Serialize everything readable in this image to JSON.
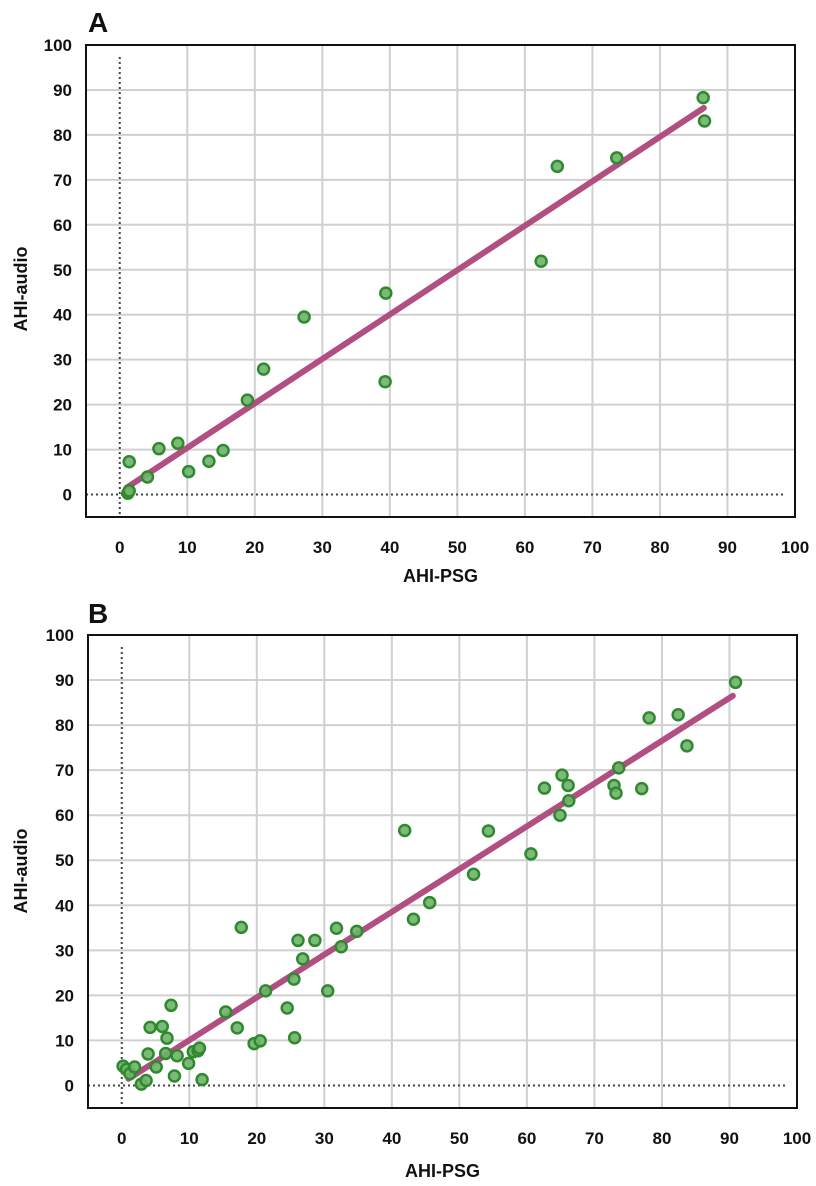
{
  "colors": {
    "point_fill": "#6fb36c",
    "point_stroke": "#2f8a2f",
    "fit_line": "#b24f82"
  },
  "chart_data": [
    {
      "panel": "A",
      "type": "scatter",
      "xlabel": "AHI-PSG",
      "ylabel": "AHI-audio",
      "xlim": [
        -5,
        100
      ],
      "ylim": [
        -5,
        100
      ],
      "xticks": [
        0,
        10,
        20,
        30,
        40,
        50,
        60,
        70,
        80,
        90,
        100
      ],
      "yticks": [
        0,
        10,
        20,
        30,
        40,
        50,
        60,
        70,
        80,
        90,
        100
      ],
      "grid": true,
      "points": [
        {
          "x": 1.2,
          "y": 0.3
        },
        {
          "x": 1.4,
          "y": 0.8
        },
        {
          "x": 1.4,
          "y": 7.3
        },
        {
          "x": 4.1,
          "y": 3.9
        },
        {
          "x": 5.8,
          "y": 10.2
        },
        {
          "x": 8.6,
          "y": 11.4
        },
        {
          "x": 10.2,
          "y": 5.1
        },
        {
          "x": 13.2,
          "y": 7.4
        },
        {
          "x": 15.3,
          "y": 9.8
        },
        {
          "x": 18.9,
          "y": 21.0
        },
        {
          "x": 21.3,
          "y": 27.9
        },
        {
          "x": 27.3,
          "y": 39.5
        },
        {
          "x": 39.3,
          "y": 25.1
        },
        {
          "x": 39.4,
          "y": 44.8
        },
        {
          "x": 62.4,
          "y": 51.9
        },
        {
          "x": 64.8,
          "y": 73.0
        },
        {
          "x": 73.6,
          "y": 74.9
        },
        {
          "x": 86.4,
          "y": 88.3
        },
        {
          "x": 86.6,
          "y": 83.1
        }
      ],
      "fit_line": {
        "x": [
          1,
          86.5
        ],
        "y": [
          1.5,
          86
        ]
      }
    },
    {
      "panel": "B",
      "type": "scatter",
      "xlabel": "AHI-PSG",
      "ylabel": "AHI-audio",
      "xlim": [
        -5,
        100
      ],
      "ylim": [
        -5,
        100
      ],
      "xticks": [
        0,
        10,
        20,
        30,
        40,
        50,
        60,
        70,
        80,
        90,
        100
      ],
      "yticks": [
        0,
        10,
        20,
        30,
        40,
        50,
        60,
        70,
        80,
        90,
        100
      ],
      "grid": true,
      "points": [
        {
          "x": 0.2,
          "y": 4.3
        },
        {
          "x": 0.7,
          "y": 3.6
        },
        {
          "x": 1.2,
          "y": 2.6
        },
        {
          "x": 1.9,
          "y": 4.1
        },
        {
          "x": 2.9,
          "y": 0.3
        },
        {
          "x": 3.6,
          "y": 1.1
        },
        {
          "x": 3.9,
          "y": 7.0
        },
        {
          "x": 4.2,
          "y": 12.9
        },
        {
          "x": 5.1,
          "y": 4.1
        },
        {
          "x": 6.0,
          "y": 13.1
        },
        {
          "x": 6.5,
          "y": 7.1
        },
        {
          "x": 6.7,
          "y": 10.5
        },
        {
          "x": 7.3,
          "y": 17.8
        },
        {
          "x": 7.8,
          "y": 2.1
        },
        {
          "x": 8.2,
          "y": 6.6
        },
        {
          "x": 9.9,
          "y": 4.9
        },
        {
          "x": 10.6,
          "y": 7.5
        },
        {
          "x": 11.3,
          "y": 7.7
        },
        {
          "x": 11.5,
          "y": 8.3
        },
        {
          "x": 11.9,
          "y": 1.3
        },
        {
          "x": 15.4,
          "y": 16.3
        },
        {
          "x": 17.1,
          "y": 12.8
        },
        {
          "x": 17.7,
          "y": 35.1
        },
        {
          "x": 19.6,
          "y": 9.3
        },
        {
          "x": 20.5,
          "y": 9.9
        },
        {
          "x": 21.3,
          "y": 21.0
        },
        {
          "x": 24.5,
          "y": 17.2
        },
        {
          "x": 25.5,
          "y": 23.6
        },
        {
          "x": 25.6,
          "y": 10.6
        },
        {
          "x": 26.1,
          "y": 32.2
        },
        {
          "x": 26.8,
          "y": 28.1
        },
        {
          "x": 28.6,
          "y": 32.2
        },
        {
          "x": 30.5,
          "y": 21.0
        },
        {
          "x": 31.8,
          "y": 34.9
        },
        {
          "x": 32.5,
          "y": 30.8
        },
        {
          "x": 34.8,
          "y": 34.2
        },
        {
          "x": 41.9,
          "y": 56.6
        },
        {
          "x": 43.2,
          "y": 36.9
        },
        {
          "x": 45.6,
          "y": 40.6
        },
        {
          "x": 52.1,
          "y": 46.9
        },
        {
          "x": 54.3,
          "y": 56.5
        },
        {
          "x": 60.6,
          "y": 51.4
        },
        {
          "x": 62.6,
          "y": 66.0
        },
        {
          "x": 64.9,
          "y": 60.0
        },
        {
          "x": 65.2,
          "y": 68.9
        },
        {
          "x": 66.1,
          "y": 66.6
        },
        {
          "x": 66.2,
          "y": 63.2
        },
        {
          "x": 72.9,
          "y": 66.6
        },
        {
          "x": 73.2,
          "y": 64.9
        },
        {
          "x": 73.6,
          "y": 70.5
        },
        {
          "x": 77.0,
          "y": 65.9
        },
        {
          "x": 78.1,
          "y": 81.6
        },
        {
          "x": 82.4,
          "y": 82.3
        },
        {
          "x": 83.7,
          "y": 75.4
        },
        {
          "x": 90.9,
          "y": 89.5
        }
      ],
      "fit_line": {
        "x": [
          1,
          90.5
        ],
        "y": [
          1.5,
          86.5
        ]
      }
    }
  ]
}
